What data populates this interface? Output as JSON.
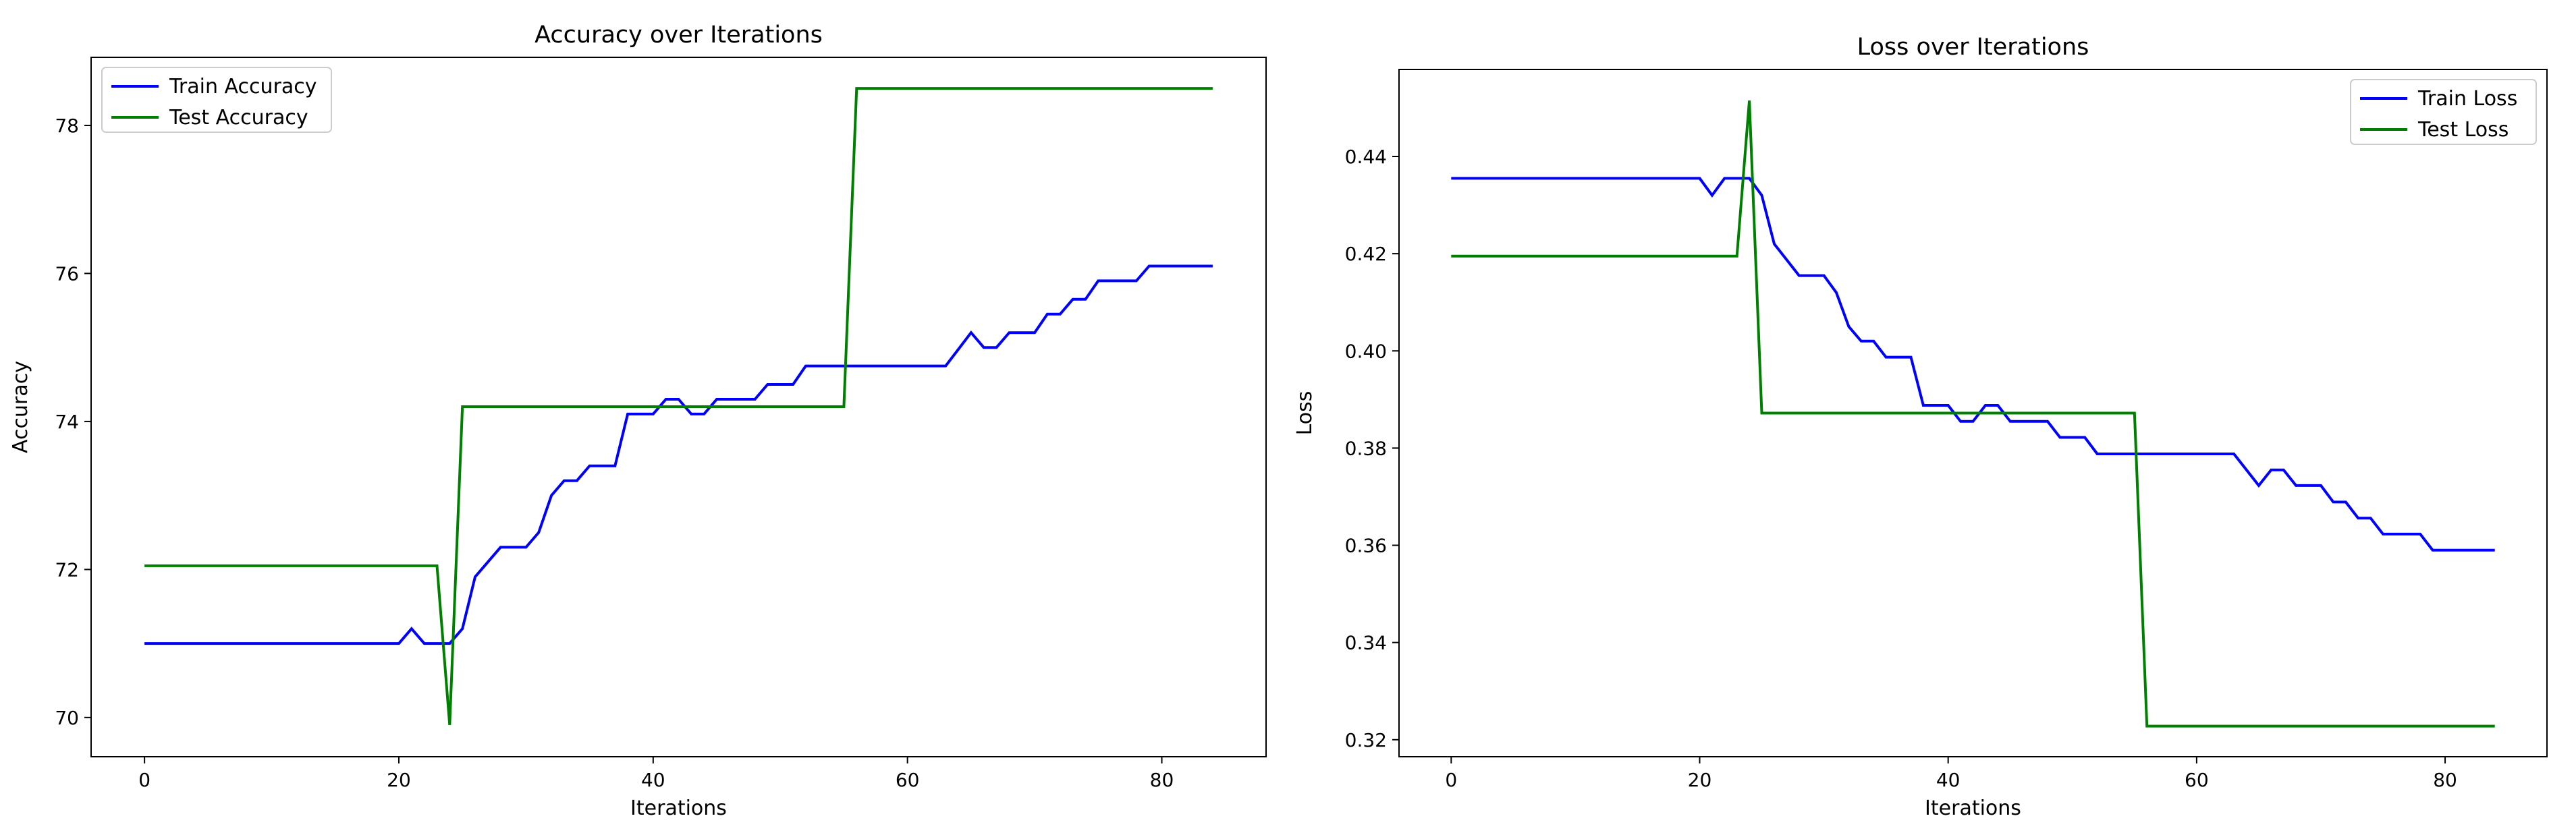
{
  "chart_data": [
    {
      "type": "line",
      "title": "Accuracy over Iterations",
      "xlabel": "Iterations",
      "ylabel": "Accuracy",
      "xlim": [
        -4.2,
        88.2
      ],
      "ylim": [
        69.47,
        78.92
      ],
      "xticks": [
        0,
        20,
        40,
        60,
        80
      ],
      "yticks": [
        70,
        72,
        74,
        76,
        78
      ],
      "grid": false,
      "legend_position": "top-left",
      "series": [
        {
          "name": "Train Accuracy",
          "color": "#0000ff",
          "points": [
            [
              0,
              71.0
            ],
            [
              20,
              71.0
            ],
            [
              21,
              71.2
            ],
            [
              22,
              71.0
            ],
            [
              24,
              71.0
            ],
            [
              25,
              71.2
            ],
            [
              26,
              71.9
            ],
            [
              28,
              72.3
            ],
            [
              30,
              72.3
            ],
            [
              31,
              72.5
            ],
            [
              32,
              73.0
            ],
            [
              33,
              73.2
            ],
            [
              34,
              73.2
            ],
            [
              35,
              73.4
            ],
            [
              37,
              73.4
            ],
            [
              38,
              74.1
            ],
            [
              40,
              74.1
            ],
            [
              41,
              74.3
            ],
            [
              42,
              74.3
            ],
            [
              43,
              74.1
            ],
            [
              44,
              74.1
            ],
            [
              45,
              74.3
            ],
            [
              48,
              74.3
            ],
            [
              49,
              74.5
            ],
            [
              51,
              74.5
            ],
            [
              52,
              74.75
            ],
            [
              63,
              74.75
            ],
            [
              65,
              75.2
            ],
            [
              66,
              75.0
            ],
            [
              67,
              75.0
            ],
            [
              68,
              75.2
            ],
            [
              70,
              75.2
            ],
            [
              71,
              75.45
            ],
            [
              72,
              75.45
            ],
            [
              73,
              75.65
            ],
            [
              74,
              75.65
            ],
            [
              75,
              75.9
            ],
            [
              78,
              75.9
            ],
            [
              79,
              76.1
            ],
            [
              84,
              76.1
            ]
          ]
        },
        {
          "name": "Test Accuracy",
          "color": "#008000",
          "points": [
            [
              0,
              72.05
            ],
            [
              23,
              72.05
            ],
            [
              24,
              69.9
            ],
            [
              25,
              74.2
            ],
            [
              55,
              74.2
            ],
            [
              56,
              78.5
            ],
            [
              84,
              78.5
            ]
          ]
        }
      ]
    },
    {
      "type": "line",
      "title": "Loss over Iterations",
      "xlabel": "Iterations",
      "ylabel": "Loss",
      "xlim": [
        -4.2,
        88.2
      ],
      "ylim": [
        0.3165,
        0.4579
      ],
      "xticks": [
        0,
        20,
        40,
        60,
        80
      ],
      "yticks": [
        0.32,
        0.34,
        0.36,
        0.38,
        0.4,
        0.42,
        0.44
      ],
      "ytick_labels": [
        "0.32",
        "0.34",
        "0.36",
        "0.38",
        "0.40",
        "0.42",
        "0.44"
      ],
      "grid": false,
      "legend_position": "top-right",
      "series": [
        {
          "name": "Train Loss",
          "color": "#0000ff",
          "points": [
            [
              0,
              0.4355
            ],
            [
              20,
              0.4355
            ],
            [
              21,
              0.432
            ],
            [
              22,
              0.4355
            ],
            [
              24,
              0.4355
            ],
            [
              25,
              0.432
            ],
            [
              26,
              0.422
            ],
            [
              28,
              0.4155
            ],
            [
              30,
              0.4155
            ],
            [
              31,
              0.412
            ],
            [
              32,
              0.405
            ],
            [
              33,
              0.402
            ],
            [
              34,
              0.402
            ],
            [
              35,
              0.3987
            ],
            [
              37,
              0.3987
            ],
            [
              38,
              0.3888
            ],
            [
              40,
              0.3888
            ],
            [
              41,
              0.3855
            ],
            [
              42,
              0.3855
            ],
            [
              43,
              0.3888
            ],
            [
              44,
              0.3888
            ],
            [
              45,
              0.3855
            ],
            [
              48,
              0.3855
            ],
            [
              49,
              0.3822
            ],
            [
              51,
              0.3822
            ],
            [
              52,
              0.3788
            ],
            [
              63,
              0.3788
            ],
            [
              65,
              0.3723
            ],
            [
              66,
              0.3755
            ],
            [
              67,
              0.3755
            ],
            [
              68,
              0.3723
            ],
            [
              70,
              0.3723
            ],
            [
              71,
              0.3689
            ],
            [
              72,
              0.3689
            ],
            [
              73,
              0.3656
            ],
            [
              74,
              0.3656
            ],
            [
              75,
              0.3623
            ],
            [
              78,
              0.3623
            ],
            [
              79,
              0.359
            ],
            [
              84,
              0.359
            ]
          ]
        },
        {
          "name": "Test Loss",
          "color": "#008000",
          "points": [
            [
              0,
              0.4195
            ],
            [
              23,
              0.4195
            ],
            [
              24,
              0.4515
            ],
            [
              25,
              0.3872
            ],
            [
              55,
              0.3872
            ],
            [
              56,
              0.3228
            ],
            [
              84,
              0.3228
            ]
          ]
        }
      ]
    }
  ]
}
